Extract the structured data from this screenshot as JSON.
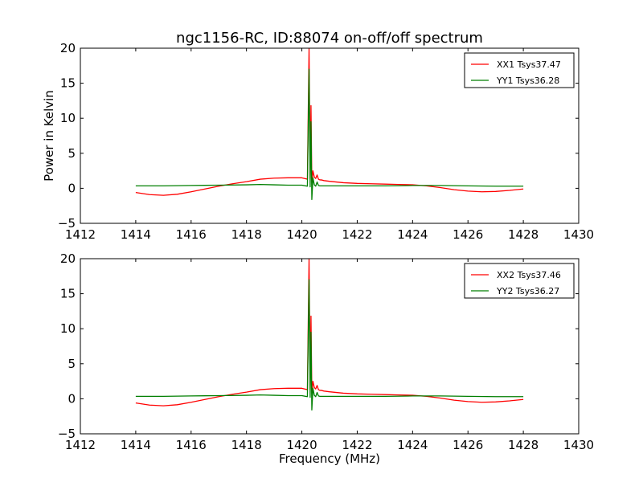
{
  "title": "ngc1156-RC, ID:88074 on-off/off spectrum",
  "ylabel": "Power in Kelvin",
  "xlabel": "Frequency (MHz)",
  "colors": {
    "xx": "#ff0000",
    "yy": "#007f00"
  },
  "chart_data": [
    {
      "type": "line",
      "xlim": [
        1412,
        1430
      ],
      "ylim": [
        -5,
        20
      ],
      "xticks": [
        "1412",
        "1414",
        "1416",
        "1418",
        "1420",
        "1422",
        "1424",
        "1426",
        "1428",
        "1430"
      ],
      "yticks": [
        "−5",
        "0",
        "5",
        "10",
        "15",
        "20"
      ],
      "legend_position": "top-right",
      "series": [
        {
          "name": "XX1 Tsys37.47",
          "color": "#ff0000",
          "x": [
            1414.0,
            1414.5,
            1415.0,
            1415.5,
            1416.0,
            1416.5,
            1417.0,
            1417.5,
            1418.0,
            1418.5,
            1419.0,
            1419.5,
            1420.0,
            1420.2,
            1420.26,
            1420.3,
            1420.33,
            1420.36,
            1420.4,
            1420.45,
            1420.5,
            1420.55,
            1420.6,
            1420.65,
            1420.7,
            1420.8,
            1421.0,
            1421.5,
            1422.0,
            1422.5,
            1423.0,
            1423.5,
            1424.0,
            1424.5,
            1425.0,
            1425.5,
            1426.0,
            1426.5,
            1427.0,
            1427.5,
            1428.0
          ],
          "y": [
            -0.6,
            -0.9,
            -1.0,
            -0.85,
            -0.5,
            -0.1,
            0.3,
            0.65,
            0.95,
            1.3,
            1.45,
            1.5,
            1.5,
            1.3,
            19.9,
            1.4,
            11.8,
            0.8,
            2.5,
            1.6,
            1.4,
            1.9,
            1.3,
            1.2,
            1.2,
            1.1,
            1.0,
            0.8,
            0.7,
            0.65,
            0.6,
            0.55,
            0.5,
            0.35,
            0.1,
            -0.2,
            -0.4,
            -0.5,
            -0.45,
            -0.3,
            -0.1
          ]
        },
        {
          "name": "YY1 Tsys36.28",
          "color": "#007f00",
          "x": [
            1414.0,
            1415.0,
            1416.0,
            1417.0,
            1418.0,
            1418.5,
            1419.0,
            1419.5,
            1420.0,
            1420.2,
            1420.26,
            1420.3,
            1420.33,
            1420.36,
            1420.4,
            1420.45,
            1420.5,
            1420.55,
            1420.6,
            1420.65,
            1420.7,
            1420.8,
            1421.0,
            1422.0,
            1423.0,
            1424.0,
            1425.0,
            1426.0,
            1427.0,
            1428.0
          ],
          "y": [
            0.35,
            0.35,
            0.4,
            0.45,
            0.5,
            0.55,
            0.5,
            0.45,
            0.45,
            0.3,
            17.0,
            0.2,
            9.5,
            -1.6,
            1.5,
            0.5,
            0.3,
            0.9,
            0.4,
            0.35,
            0.35,
            0.35,
            0.35,
            0.35,
            0.35,
            0.4,
            0.4,
            0.35,
            0.3,
            0.3
          ]
        }
      ]
    },
    {
      "type": "line",
      "xlim": [
        1412,
        1430
      ],
      "ylim": [
        -5,
        20
      ],
      "xticks": [
        "1412",
        "1414",
        "1416",
        "1418",
        "1420",
        "1422",
        "1424",
        "1426",
        "1428",
        "1430"
      ],
      "yticks": [
        "−5",
        "0",
        "5",
        "10",
        "15",
        "20"
      ],
      "legend_position": "top-right",
      "series": [
        {
          "name": "XX2 Tsys37.46",
          "color": "#ff0000",
          "x": [
            1414.0,
            1414.5,
            1415.0,
            1415.5,
            1416.0,
            1416.5,
            1417.0,
            1417.5,
            1418.0,
            1418.5,
            1419.0,
            1419.5,
            1420.0,
            1420.2,
            1420.26,
            1420.3,
            1420.33,
            1420.36,
            1420.4,
            1420.45,
            1420.5,
            1420.55,
            1420.6,
            1420.65,
            1420.7,
            1420.8,
            1421.0,
            1421.5,
            1422.0,
            1422.5,
            1423.0,
            1423.5,
            1424.0,
            1424.5,
            1425.0,
            1425.5,
            1426.0,
            1426.5,
            1427.0,
            1427.5,
            1428.0
          ],
          "y": [
            -0.6,
            -0.9,
            -1.0,
            -0.85,
            -0.5,
            -0.1,
            0.3,
            0.65,
            0.95,
            1.3,
            1.45,
            1.5,
            1.5,
            1.3,
            19.9,
            1.4,
            11.8,
            0.8,
            2.5,
            1.6,
            1.4,
            1.9,
            1.3,
            1.2,
            1.2,
            1.1,
            1.0,
            0.8,
            0.7,
            0.65,
            0.6,
            0.55,
            0.5,
            0.35,
            0.1,
            -0.2,
            -0.4,
            -0.5,
            -0.45,
            -0.3,
            -0.1
          ]
        },
        {
          "name": "YY2 Tsys36.27",
          "color": "#007f00",
          "x": [
            1414.0,
            1415.0,
            1416.0,
            1417.0,
            1418.0,
            1418.5,
            1419.0,
            1419.5,
            1420.0,
            1420.2,
            1420.26,
            1420.3,
            1420.33,
            1420.36,
            1420.4,
            1420.45,
            1420.5,
            1420.55,
            1420.6,
            1420.65,
            1420.7,
            1420.8,
            1421.0,
            1422.0,
            1423.0,
            1424.0,
            1425.0,
            1426.0,
            1427.0,
            1428.0
          ],
          "y": [
            0.35,
            0.35,
            0.4,
            0.45,
            0.5,
            0.55,
            0.5,
            0.45,
            0.45,
            0.3,
            17.0,
            0.2,
            9.5,
            -1.6,
            1.5,
            0.5,
            0.3,
            0.9,
            0.4,
            0.35,
            0.35,
            0.35,
            0.35,
            0.35,
            0.35,
            0.4,
            0.4,
            0.35,
            0.3,
            0.3
          ]
        }
      ]
    }
  ]
}
